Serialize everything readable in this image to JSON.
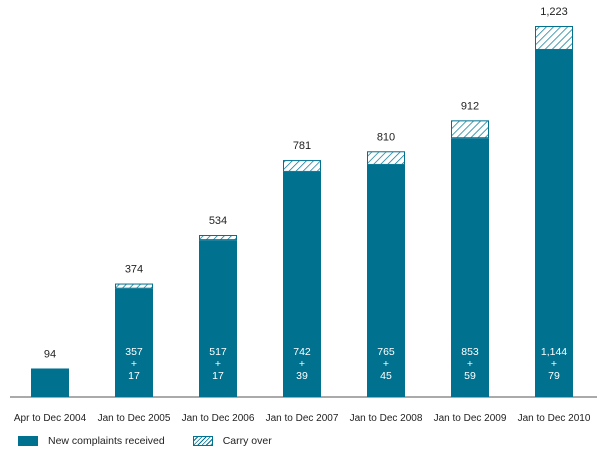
{
  "chart_data": {
    "type": "bar",
    "stacked": true,
    "categories": [
      "Apr to Dec 2004",
      "Jan to Dec 2005",
      "Jan to Dec 2006",
      "Jan to Dec 2007",
      "Jan to Dec 2008",
      "Jan to Dec 2009",
      "Jan to Dec 2010"
    ],
    "series": [
      {
        "name": "New complaints received",
        "values": [
          94,
          357,
          517,
          742,
          765,
          853,
          1144
        ],
        "color": "#00718f"
      },
      {
        "name": "Carry over",
        "values": [
          0,
          17,
          17,
          39,
          45,
          59,
          79
        ],
        "color": "#00718f",
        "pattern": "diagonal-hatch"
      }
    ],
    "totals": [
      "94",
      "374",
      "534",
      "781",
      "810",
      "912",
      "1,223"
    ],
    "inner_labels": [
      null,
      [
        "357",
        "+",
        "17"
      ],
      [
        "517",
        "+",
        "17"
      ],
      [
        "742",
        "+",
        "39"
      ],
      [
        "765",
        "+",
        "45"
      ],
      [
        "853",
        "+",
        "59"
      ],
      [
        "1,144",
        "+",
        "79"
      ]
    ],
    "ylim": [
      0,
      1223
    ],
    "grid": false,
    "legend_position": "bottom-left"
  },
  "legend": {
    "new_label": "New complaints received",
    "carry_label": "Carry over"
  }
}
